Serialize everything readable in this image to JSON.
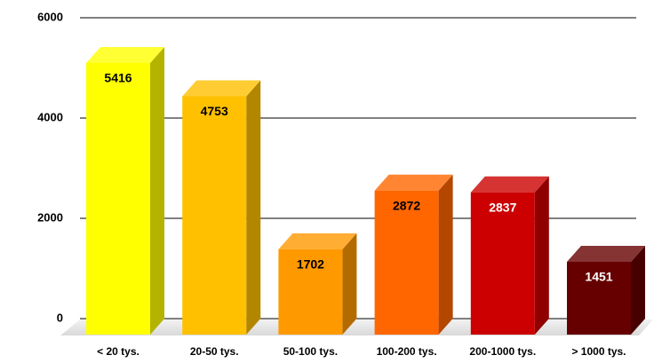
{
  "chart_data": {
    "type": "bar",
    "categories": [
      "< 20 tys.",
      "20-50 tys.",
      "50-100 tys.",
      "100-200 tys.",
      "200-1000 tys.",
      "> 1000 tys."
    ],
    "values": [
      5416,
      4753,
      1702,
      2872,
      2837,
      1451
    ],
    "colors": [
      "#ffff00",
      "#ffc000",
      "#ff9900",
      "#ff6600",
      "#cc0000",
      "#660000"
    ],
    "label_colors": [
      "#000000",
      "#000000",
      "#000000",
      "#000000",
      "#ffffff",
      "#ffffff"
    ],
    "ylim": [
      0,
      6000
    ],
    "yticks": [
      0,
      2000,
      4000,
      6000
    ],
    "grid": true
  }
}
